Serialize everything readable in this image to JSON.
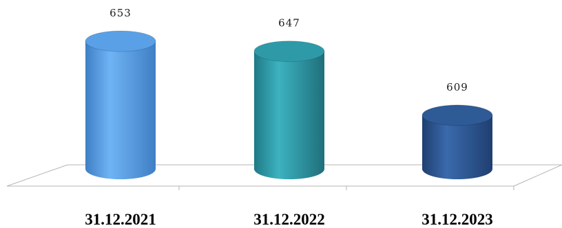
{
  "chart_data": {
    "type": "bar",
    "style": "3d-cylinder",
    "categories": [
      "31.12.2021",
      "31.12.2022",
      "31.12.2023"
    ],
    "values": [
      653,
      647,
      609
    ],
    "data_labels": [
      "653",
      "647",
      "609"
    ],
    "ylim": [
      600,
      655
    ],
    "grid": false,
    "legend": "none",
    "colors": {
      "bar_1": "#5aa0e6",
      "bar_2": "#2e9aa8",
      "bar_3": "#2e5a96"
    }
  }
}
